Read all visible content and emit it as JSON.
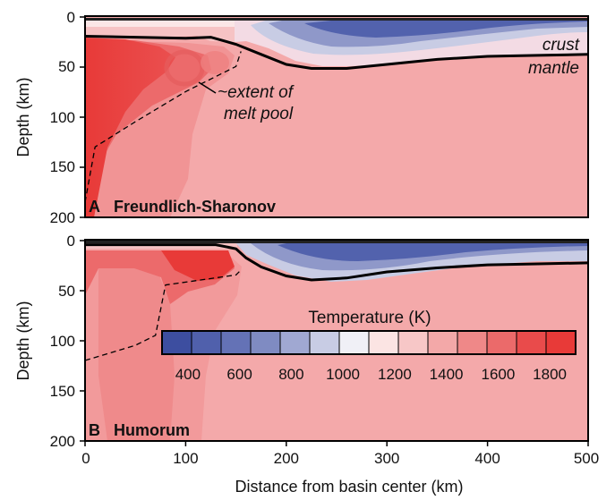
{
  "chart_data": [
    {
      "type": "heatmap",
      "panel": "A",
      "title": "Freundlich-Sharonov",
      "xlabel": "",
      "ylabel": "Depth (km)",
      "xlim": [
        0,
        500
      ],
      "ylim": [
        200,
        0
      ],
      "y_ticks": [
        "0",
        "50",
        "100",
        "150",
        "200"
      ],
      "annotations": [
        "crust",
        "mantle",
        "~extent of",
        "melt pool"
      ],
      "crust_mantle_boundary": {
        "x": [
          0,
          100,
          125,
          150,
          175,
          200,
          225,
          260,
          300,
          350,
          400,
          450,
          500
        ],
        "depth": [
          20,
          22,
          21,
          28,
          38,
          48,
          52,
          52,
          48,
          43,
          40,
          39,
          38
        ]
      },
      "melt_pool_extent": {
        "x": [
          0,
          10,
          50,
          100,
          150,
          155
        ],
        "depth": [
          185,
          130,
          105,
          75,
          50,
          35
        ]
      }
    },
    {
      "type": "heatmap",
      "panel": "B",
      "title": "Humorum",
      "xlabel": "Distance from basin center (km)",
      "ylabel": "Depth (km)",
      "xlim": [
        0,
        500
      ],
      "ylim": [
        200,
        0
      ],
      "x_ticks": [
        "0",
        "100",
        "200",
        "300",
        "400",
        "500"
      ],
      "y_ticks": [
        "0",
        "50",
        "100",
        "150",
        "200"
      ],
      "crust_mantle_boundary": {
        "x": [
          0,
          130,
          150,
          160,
          175,
          200,
          225,
          260,
          300,
          350,
          400,
          450,
          500
        ],
        "depth": [
          5,
          5,
          9,
          18,
          27,
          36,
          40,
          38,
          32,
          28,
          25,
          24,
          23
        ]
      },
      "melt_pool_extent": {
        "x": [
          0,
          50,
          70,
          80,
          150,
          155
        ],
        "depth": [
          120,
          105,
          95,
          45,
          35,
          30
        ]
      }
    }
  ],
  "colorbar": {
    "title": "Temperature (K)",
    "tick_labels": [
      "400",
      "600",
      "800",
      "1000",
      "1200",
      "1400",
      "1600",
      "1800"
    ],
    "range": [
      300,
      1900
    ],
    "colors": [
      "#3d4ea0",
      "#5060ac",
      "#6472b6",
      "#7f8bc2",
      "#a0a8d2",
      "#c8cce4",
      "#f0f0f6",
      "#fbe4e3",
      "#f7c7c7",
      "#f3a8a8",
      "#ef8888",
      "#eb6a6a",
      "#e94b4b",
      "#e83a38"
    ]
  },
  "labels": {
    "panel_a_letter": "A",
    "panel_b_letter": "B"
  }
}
